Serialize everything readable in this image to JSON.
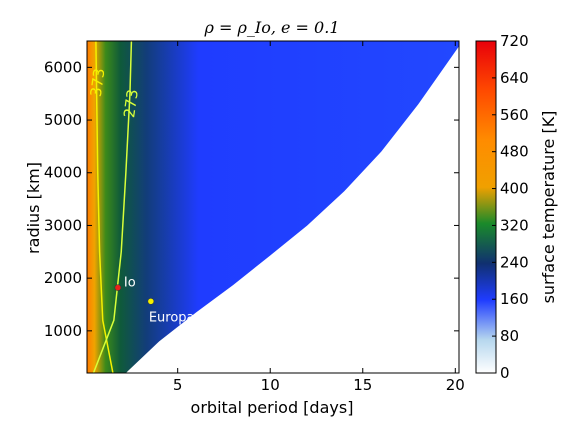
{
  "chart_data": {
    "type": "heatmap",
    "title": "ρ = ρ_Io, e = 0.1",
    "xlabel": "orbital period [days]",
    "ylabel": "radius [km]",
    "xlim": [
      0.1,
      20.2
    ],
    "ylim": [
      200,
      6500
    ],
    "x_ticks": [
      5,
      10,
      15,
      20
    ],
    "y_ticks": [
      1000,
      2000,
      3000,
      4000,
      5000,
      6000
    ],
    "colorbar": {
      "label": "surface temperature [K]",
      "range": [
        0,
        720
      ],
      "ticks": [
        0,
        80,
        160,
        240,
        320,
        400,
        480,
        560,
        640,
        720
      ]
    },
    "contours": [
      {
        "label": "373",
        "value": 373,
        "color": "#f5f000",
        "x": [
          1.5,
          0.95,
          0.78,
          0.68,
          0.62,
          0.58
        ],
        "y": [
          200,
          1200,
          2500,
          4000,
          5500,
          6500
        ]
      },
      {
        "label": "273",
        "value": 273,
        "color": "#d8ff3a",
        "x": [
          0.45,
          1.55,
          1.95,
          2.2,
          2.42,
          2.5
        ],
        "y": [
          200,
          1200,
          2500,
          4000,
          5500,
          6500
        ]
      }
    ],
    "domain_boundary": {
      "x": [
        2.2,
        4,
        6,
        8,
        10,
        12,
        14,
        16,
        18,
        20.2
      ],
      "y": [
        200,
        800,
        1350,
        1870,
        2430,
        3000,
        3650,
        4400,
        5300,
        6400
      ]
    },
    "points": [
      {
        "name": "Io",
        "x": 1.77,
        "y": 1820,
        "color": "#e8221a"
      },
      {
        "name": "Europa",
        "x": 3.55,
        "y": 1560,
        "color": "#f3f000"
      }
    ]
  },
  "colors": {
    "background": "#ffffff",
    "field_near": "#ff6a00",
    "field_mid": "#1a6a3a",
    "field_far": "#1f3cff"
  }
}
